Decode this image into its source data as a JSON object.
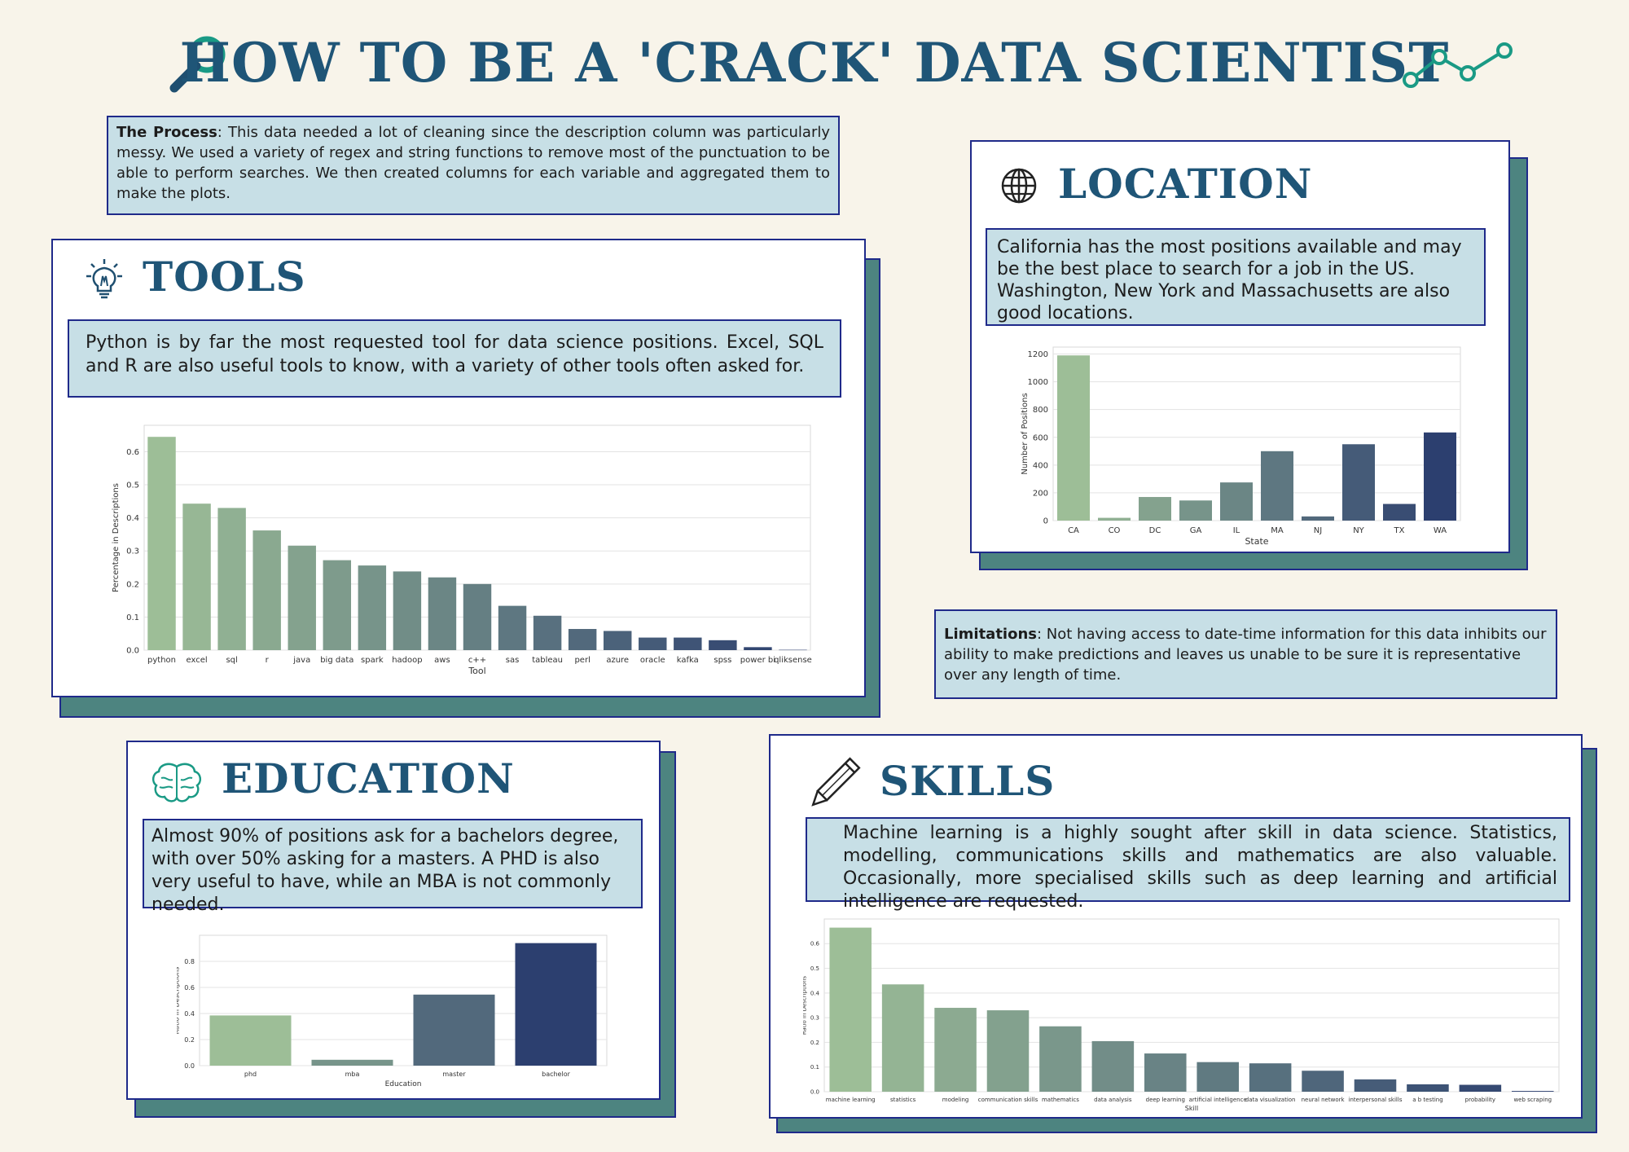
{
  "header": {
    "title": "HOW TO BE A 'CRACK' DATA SCIENTIST"
  },
  "process": {
    "label": "The Process",
    "text": ": This data needed a lot of cleaning since the description column was particularly messy. We used a variety of regex and string functions to remove most of the punctuation to be able to perform searches. We then created columns for each variable and aggregated them to make the plots."
  },
  "limitations": {
    "label": "Limitations",
    "text": ": Not having access to date-time information for this data inhibits our ability to make predictions and leaves us unable to be sure it is representative over any length of time."
  },
  "tools": {
    "title": "TOOLS",
    "text": "Python is by far the most requested tool for data science positions. Excel, SQL and R are also useful tools to know, with a variety of other tools often asked for."
  },
  "location": {
    "title": "LOCATION",
    "text": "California has the most positions available and may be the best place to search for a job in the US. Washington, New York and Massachusetts are also good locations."
  },
  "education": {
    "title": "EDUCATION",
    "text": "Almost 90% of positions ask for a bachelors degree, with over 50%  asking for a masters. A PHD is also very useful to have, while an MBA is not commonly needed."
  },
  "skills": {
    "title": "SKILLS",
    "text": "Machine learning  is a highly sought after skill in data science.  Statistics, modelling, communications skills and mathematics are also valuable. Occasionally, more specialised skills such as deep learning and artificial intelligence are requested."
  },
  "icons": {
    "magnifier": "magnifying-glass-icon",
    "trend": "trend-line-icon",
    "tools": "lightbulb-icon",
    "location": "globe-icon",
    "education": "brain-icon",
    "skills": "pencil-icon"
  },
  "colors": {
    "title": "#1f5577",
    "textbox_bg": "#c7dfe6",
    "border": "#1f2a8a",
    "shadow": "#4d8480",
    "background": "#f8f4ea",
    "bar_start": "#9dbe97",
    "bar_end": "#2c3f6f"
  },
  "chart_data": [
    {
      "id": "tools",
      "type": "bar",
      "categories": [
        "python",
        "excel",
        "sql",
        "r",
        "java",
        "big data",
        "spark",
        "hadoop",
        "aws",
        "c++",
        "sas",
        "tableau",
        "perl",
        "azure",
        "oracle",
        "kafka",
        "spss",
        "power bi",
        "qliksense"
      ],
      "values": [
        0.645,
        0.443,
        0.43,
        0.362,
        0.316,
        0.272,
        0.256,
        0.238,
        0.22,
        0.2,
        0.134,
        0.104,
        0.064,
        0.058,
        0.038,
        0.038,
        0.03,
        0.009,
        0.001
      ],
      "xlabel": "Tool",
      "ylabel": "Percentage in Descriptions",
      "ylim": [
        0,
        0.68
      ],
      "yticks": [
        0.0,
        0.1,
        0.2,
        0.3,
        0.4,
        0.5,
        0.6
      ],
      "grid": true
    },
    {
      "id": "location",
      "type": "bar",
      "categories": [
        "CA",
        "CO",
        "DC",
        "GA",
        "IL",
        "MA",
        "NJ",
        "NY",
        "TX",
        "WA"
      ],
      "values": [
        1190,
        20,
        170,
        145,
        275,
        500,
        30,
        550,
        120,
        635
      ],
      "xlabel": "State",
      "ylabel": "Number of Positions",
      "ylim": [
        0,
        1250
      ],
      "yticks": [
        0,
        200,
        400,
        600,
        800,
        1000,
        1200
      ],
      "grid": true
    },
    {
      "id": "education",
      "type": "bar",
      "categories": [
        "phd",
        "mba",
        "master",
        "bachelor"
      ],
      "values": [
        0.385,
        0.045,
        0.545,
        0.94
      ],
      "xlabel": "Education",
      "ylabel": "Ratio in Descriptions",
      "ylim": [
        0,
        1.0
      ],
      "yticks": [
        0.0,
        0.2,
        0.4,
        0.6,
        0.8
      ],
      "grid": true
    },
    {
      "id": "skills",
      "type": "bar",
      "categories": [
        "machine learning",
        "statistics",
        "modeling",
        "communication skills",
        "mathematics",
        "data analysis",
        "deep learning",
        "artificial intelligence",
        "data visualization",
        "neural network",
        "interpersonal skills",
        "a b testing",
        "probability",
        "web scraping"
      ],
      "values": [
        0.665,
        0.435,
        0.34,
        0.33,
        0.265,
        0.205,
        0.155,
        0.12,
        0.115,
        0.085,
        0.05,
        0.03,
        0.028,
        0.003
      ],
      "xlabel": "Skill",
      "ylabel": "Ratio in Descriptions",
      "ylim": [
        0,
        0.7
      ],
      "yticks": [
        0.0,
        0.1,
        0.2,
        0.3,
        0.4,
        0.5,
        0.6
      ],
      "grid": true
    }
  ]
}
